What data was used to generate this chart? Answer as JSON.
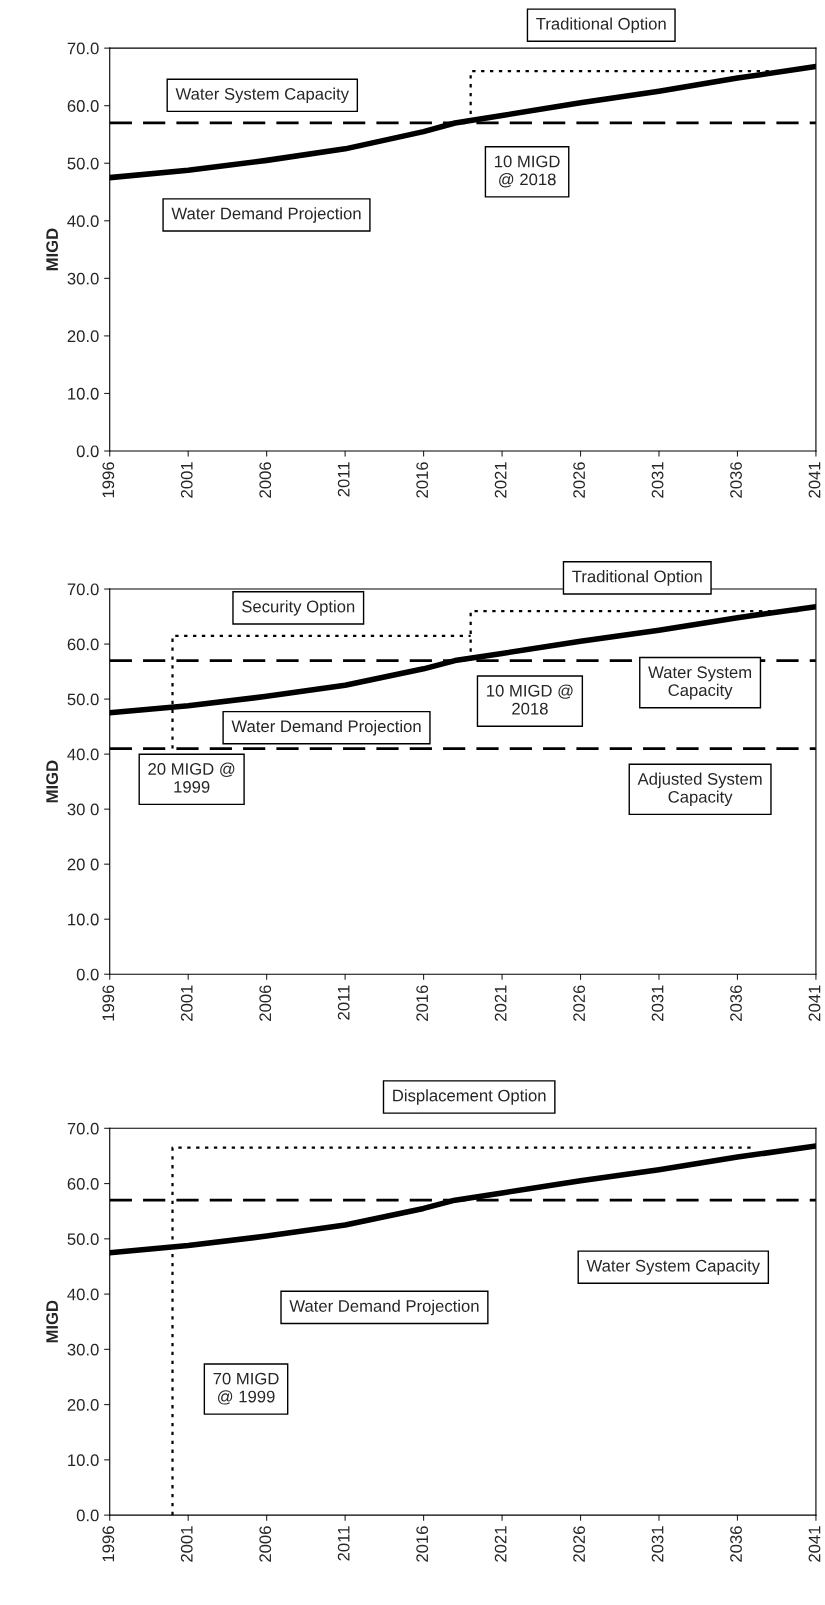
{
  "chart_data": [
    {
      "type": "line",
      "ylabel": "MIGD",
      "x": [
        1996,
        2001,
        2006,
        2011,
        2016,
        2018,
        2021,
        2026,
        2031,
        2036,
        2041
      ],
      "series": [
        {
          "color": "#000000",
          "line_style": "solid",
          "values": [
            47.5,
            48.8,
            50.5,
            52.5,
            55.5,
            57.0,
            58.3,
            60.5,
            62.5,
            64.8,
            66.8
          ]
        },
        {
          "color": "#000000",
          "line_style": "dotted",
          "x": [
            2019,
            2019,
            2038
          ],
          "values": [
            57,
            66,
            66
          ]
        }
      ],
      "ref_lines": [
        {
          "axis": "y",
          "value": 57,
          "line_style": "dashed",
          "color": "#000000"
        }
      ],
      "annotations": [
        "Traditional Option",
        "Water System Capacity",
        "10 MIGD\n@ 2018",
        "Water Demand Projection"
      ],
      "xlim": [
        1996,
        2041
      ],
      "xticks": [
        1996,
        2001,
        2006,
        2011,
        2016,
        2021,
        2026,
        2031,
        2036,
        2041
      ],
      "ylim": [
        0,
        70
      ],
      "yticks": [
        {
          "value": 0,
          "label": "0.0"
        },
        {
          "value": 10,
          "label": "10.0"
        },
        {
          "value": 20,
          "label": "20.0"
        },
        {
          "value": 30,
          "label": "30.0"
        },
        {
          "value": 40,
          "label": "40.0"
        },
        {
          "value": 50,
          "label": "50.0"
        },
        {
          "value": 60,
          "label": "60.0"
        },
        {
          "value": 70,
          "label": "70.0"
        }
      ],
      "grid": false,
      "legend": false
    },
    {
      "type": "line",
      "ylabel": "MIGD",
      "x": [
        1996,
        2001,
        2006,
        2011,
        2016,
        2018,
        2021,
        2026,
        2031,
        2036,
        2041
      ],
      "series": [
        {
          "color": "#000000",
          "line_style": "solid",
          "values": [
            47.5,
            48.8,
            50.5,
            52.5,
            55.5,
            57.0,
            58.3,
            60.5,
            62.5,
            64.8,
            66.8
          ]
        },
        {
          "color": "#000000",
          "line_style": "dotted",
          "x": [
            2000,
            2000,
            2019
          ],
          "values": [
            41,
            61.5,
            61.5
          ]
        },
        {
          "color": "#000000",
          "line_style": "dotted",
          "x": [
            2019,
            2019,
            2040
          ],
          "values": [
            57,
            66,
            66
          ]
        }
      ],
      "ref_lines": [
        {
          "axis": "y",
          "value": 57,
          "line_style": "dashed",
          "color": "#000000"
        },
        {
          "axis": "y",
          "value": 41,
          "line_style": "dashed",
          "color": "#000000"
        }
      ],
      "annotations": [
        "Traditional Option",
        "Security Option",
        "Water Demand Projection",
        "10 MIGD @\n2018",
        "Water System\nCapacity",
        "Adjusted System\nCapacity",
        "20 MIGD @\n1999"
      ],
      "xlim": [
        1996,
        2041
      ],
      "xticks": [
        1996,
        2001,
        2006,
        2011,
        2016,
        2021,
        2026,
        2031,
        2036,
        2041
      ],
      "ylim": [
        0,
        70
      ],
      "yticks": [
        {
          "value": 0,
          "label": "0.0"
        },
        {
          "value": 10,
          "label": "10.0"
        },
        {
          "value": 20,
          "label": "20 0"
        },
        {
          "value": 30,
          "label": "30 0"
        },
        {
          "value": 40,
          "label": "40.0"
        },
        {
          "value": 50,
          "label": "50.0"
        },
        {
          "value": 60,
          "label": "60.0"
        },
        {
          "value": 70,
          "label": "70.0"
        }
      ],
      "grid": false,
      "legend": false
    },
    {
      "type": "line",
      "ylabel": "MIGD",
      "x": [
        1996,
        2001,
        2006,
        2011,
        2016,
        2018,
        2021,
        2026,
        2031,
        2036,
        2041
      ],
      "series": [
        {
          "color": "#000000",
          "line_style": "solid",
          "values": [
            47.5,
            48.8,
            50.5,
            52.5,
            55.5,
            57.0,
            58.3,
            60.5,
            62.5,
            64.8,
            66.8
          ]
        },
        {
          "color": "#000000",
          "line_style": "dotted",
          "x": [
            2000,
            2000,
            2037
          ],
          "values": [
            0,
            66.5,
            66.5
          ]
        }
      ],
      "ref_lines": [
        {
          "axis": "y",
          "value": 57,
          "line_style": "dashed",
          "color": "#000000"
        }
      ],
      "annotations": [
        "Displacement Option",
        "Water System Capacity",
        "Water Demand Projection",
        "70 MIGD\n@ 1999"
      ],
      "xlim": [
        1996,
        2041
      ],
      "xticks": [
        1996,
        2001,
        2006,
        2011,
        2016,
        2021,
        2026,
        2031,
        2036,
        2041
      ],
      "ylim": [
        0,
        70
      ],
      "yticks": [
        {
          "value": 0,
          "label": "0.0"
        },
        {
          "value": 10,
          "label": "10.0"
        },
        {
          "value": 20,
          "label": "20.0"
        },
        {
          "value": 30,
          "label": "30.0"
        },
        {
          "value": 40,
          "label": "40.0"
        },
        {
          "value": 50,
          "label": "50.0"
        },
        {
          "value": 60,
          "label": "60.0"
        },
        {
          "value": 70,
          "label": "70.0"
        }
      ],
      "grid": false,
      "legend": false
    }
  ]
}
